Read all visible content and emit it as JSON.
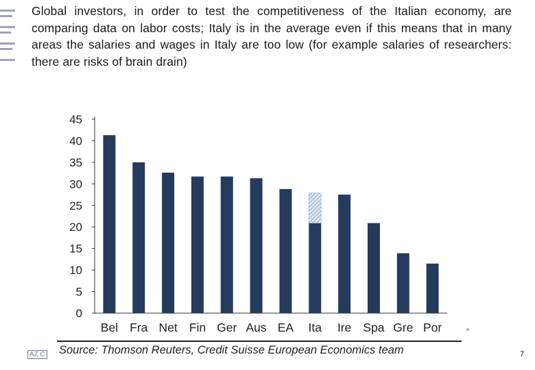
{
  "intro_text": "Global investors, in order to test the competitiveness of the Italian economy, are comparing data on labor costs; Italy is in the average even if this means that in many areas the salaries and wages in Italy are too low (for example salaries of researchers: there are risks of brain drain)",
  "source_text": "Source: Thomson Reuters, Credit Suisse European Economics team",
  "page_number": "7",
  "footer_logo_text": "AZ C",
  "colors": {
    "bar": "#243b5e",
    "hatch_stroke": "#7f99bb",
    "hatch_bg": "#dfe6f0"
  },
  "chart_data": {
    "type": "bar",
    "title": "",
    "xlabel": "",
    "ylabel": "",
    "categories": [
      "Bel",
      "Fra",
      "Net",
      "Fin",
      "Ger",
      "Aus",
      "EA",
      "Ita",
      "Ire",
      "Spa",
      "Gre",
      "Por"
    ],
    "values": [
      41.3,
      35.0,
      32.6,
      31.7,
      31.7,
      31.3,
      28.8,
      20.9,
      27.5,
      20.9,
      13.9,
      11.5
    ],
    "stacked_extra": [
      0,
      0,
      0,
      0,
      0,
      0,
      0,
      7.0,
      0,
      0,
      0,
      0
    ],
    "ylim": [
      0,
      45
    ],
    "yticks": [
      0,
      5,
      10,
      15,
      20,
      25,
      30,
      35,
      40,
      45
    ],
    "grid": false,
    "legend": "none"
  }
}
